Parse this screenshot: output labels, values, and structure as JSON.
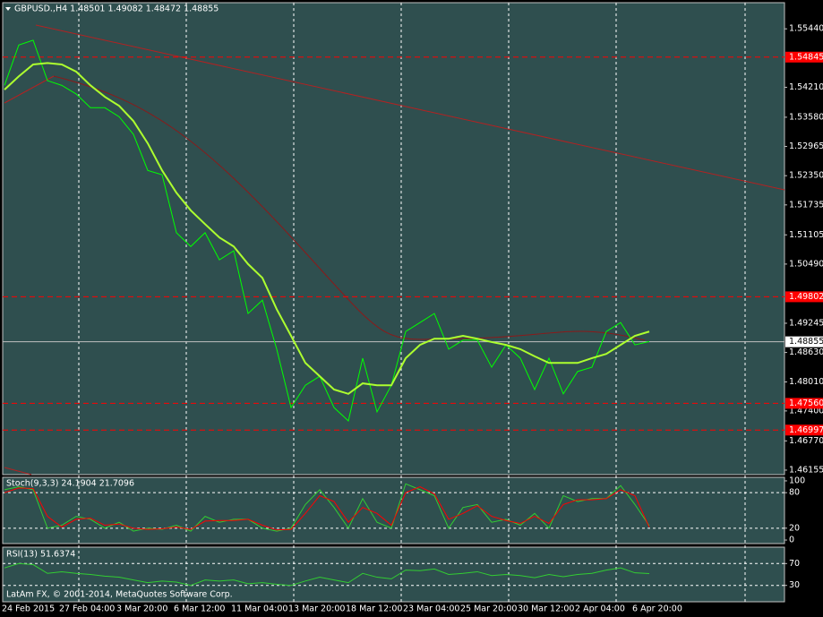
{
  "time_labels": [
    "24 Feb 2015",
    "27 Feb 04:00",
    "3 Mar 20:00",
    "6 Mar 12:00",
    "11 Mar 04:00",
    "13 Mar 20:00",
    "18 Mar 12:00",
    "23 Mar 04:00",
    "25 Mar 20:00",
    "30 Mar 12:00",
    "2 Apr 04:00",
    "6 Apr 20:00"
  ],
  "footer": "LatAm FX, © 2001-2014, MetaQuotes Software Corp.",
  "chart_data": [
    {
      "type": "line",
      "title": "GBPUSD.,H4  1.48501 1.49082 1.48472 1.48855",
      "ylim": [
        1.4606,
        1.5599
      ],
      "yticks": [
        {
          "value": 1.5544,
          "label": "1.55440"
        },
        {
          "value": 1.5421,
          "label": "1.54210"
        },
        {
          "value": 1.5358,
          "label": "1.53580"
        },
        {
          "value": 1.52965,
          "label": "1.52965"
        },
        {
          "value": 1.5235,
          "label": "1.52350"
        },
        {
          "value": 1.51735,
          "label": "1.51735"
        },
        {
          "value": 1.51105,
          "label": "1.51105"
        },
        {
          "value": 1.5049,
          "label": "1.50490"
        },
        {
          "value": 1.49245,
          "label": "1.49245"
        },
        {
          "value": 1.4863,
          "label": "1.48630"
        },
        {
          "value": 1.4801,
          "label": "1.48010"
        },
        {
          "value": 1.474,
          "label": "1.47400"
        },
        {
          "value": 1.4677,
          "label": "1.46770"
        },
        {
          "value": 1.46155,
          "label": "1.46155"
        }
      ],
      "levels": [
        {
          "value": 1.54845,
          "label": "1.54845"
        },
        {
          "value": 1.49802,
          "label": "1.49802"
        },
        {
          "value": 1.4756,
          "label": "1.47560"
        },
        {
          "value": 1.46997,
          "label": "1.46997"
        }
      ],
      "level_color": "#ff0000",
      "current": {
        "value": 1.48855,
        "label": "1.48855"
      },
      "series": [
        {
          "name": "GBPUSD.",
          "color": "#00ff00",
          "values": [
            1.5425,
            1.551,
            1.552,
            1.5435,
            1.5425,
            1.5407,
            1.5378,
            1.5378,
            1.5359,
            1.5322,
            1.5246,
            1.5237,
            1.5115,
            1.5086,
            1.5115,
            1.5058,
            1.5077,
            1.4945,
            1.4973,
            1.487,
            1.4747,
            1.4794,
            1.4813,
            1.4747,
            1.4719,
            1.4851,
            1.4738,
            1.4794,
            1.4907,
            1.4926,
            1.4945,
            1.487,
            1.4889,
            1.4889,
            1.4832,
            1.4879,
            1.4851,
            1.4785,
            1.4851,
            1.4776,
            1.4823,
            1.4832,
            1.4907,
            1.4926,
            1.4879,
            1.4886
          ]
        },
        {
          "name": "MA",
          "color": "#adff2f",
          "values": [
            1.5416,
            1.5444,
            1.5469,
            1.5472,
            1.5469,
            1.5454,
            1.5425,
            1.5401,
            1.5382,
            1.535,
            1.5303,
            1.5246,
            1.5199,
            1.5162,
            1.5133,
            1.5105,
            1.5086,
            1.5049,
            1.502,
            1.4954,
            1.4898,
            1.4841,
            1.4813,
            1.4785,
            1.4776,
            1.4798,
            1.4794,
            1.4794,
            1.4851,
            1.4879,
            1.4892,
            1.4892,
            1.4898,
            1.4892,
            1.4885,
            1.4879,
            1.487,
            1.4855,
            1.4841,
            1.4841,
            1.4841,
            1.4851,
            1.486,
            1.4879,
            1.4898,
            1.4907
          ]
        }
      ]
    },
    {
      "type": "line",
      "title": "Stoch(9,3,3) 24.1904 21.7096",
      "ylim": [
        -6,
        106
      ],
      "yticks": [
        100,
        80,
        20,
        0
      ],
      "levels": [
        80,
        20
      ],
      "series": [
        {
          "name": "Main",
          "color": "#32cd32",
          "values": [
            85,
            90,
            85,
            20,
            25,
            40,
            35,
            20,
            30,
            15,
            20,
            18,
            25,
            15,
            40,
            30,
            35,
            35,
            20,
            15,
            20,
            60,
            85,
            55,
            20,
            70,
            30,
            20,
            95,
            85,
            75,
            20,
            55,
            60,
            30,
            35,
            25,
            45,
            20,
            75,
            65,
            70,
            70,
            92,
            60,
            24.19
          ]
        },
        {
          "name": "Signal",
          "color": "#ff0000",
          "values": [
            80,
            88,
            87,
            40,
            22,
            35,
            37,
            25,
            27,
            20,
            18,
            19,
            22,
            18,
            32,
            33,
            33,
            35,
            25,
            17,
            18,
            45,
            75,
            65,
            30,
            55,
            45,
            25,
            80,
            90,
            78,
            35,
            45,
            58,
            40,
            33,
            28,
            40,
            28,
            60,
            68,
            68,
            70,
            85,
            75,
            21.71
          ]
        }
      ]
    },
    {
      "type": "line",
      "title": "RSI(13) 51.6374",
      "ylim": [
        0,
        100
      ],
      "yticks": [
        70,
        30
      ],
      "levels": [
        70,
        30
      ],
      "series": [
        {
          "name": "RSI",
          "color": "#32cd32",
          "values": [
            62,
            70,
            68,
            52,
            55,
            52,
            50,
            47,
            45,
            40,
            35,
            38,
            36,
            30,
            40,
            38,
            40,
            33,
            35,
            32,
            30,
            38,
            45,
            40,
            35,
            52,
            45,
            42,
            58,
            57,
            60,
            50,
            52,
            55,
            48,
            50,
            48,
            44,
            50,
            46,
            50,
            52,
            58,
            62,
            53,
            51.64
          ]
        }
      ]
    }
  ]
}
